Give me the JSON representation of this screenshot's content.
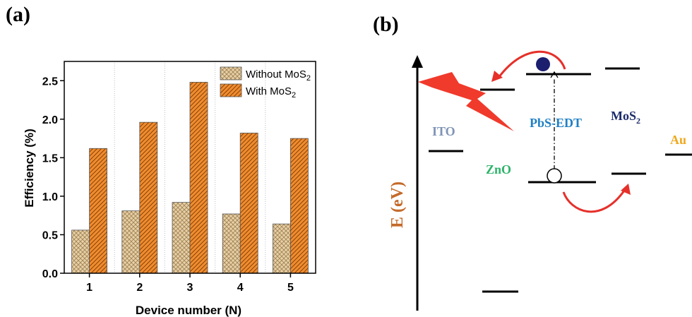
{
  "panel_a": {
    "label": "(a)"
  },
  "panel_b": {
    "label": "(b)"
  },
  "chart_data": {
    "type": "bar",
    "categories": [
      "1",
      "2",
      "3",
      "4",
      "5"
    ],
    "series": [
      {
        "name": "Without MoS",
        "sub": "2",
        "values": [
          0.56,
          0.81,
          0.92,
          0.77,
          0.64
        ],
        "color": "#e8cfa4",
        "hatch": "crosshatch"
      },
      {
        "name": "With MoS",
        "sub": "2",
        "values": [
          1.62,
          1.96,
          2.48,
          1.82,
          1.75
        ],
        "color": "#f08c2e",
        "hatch": "diagonal"
      }
    ],
    "xlabel": "Device number (N)",
    "ylabel": "Efficiency (%)",
    "ylim": [
      0,
      2.75
    ],
    "yticks": [
      "0.0",
      "0.5",
      "1.0",
      "1.5",
      "2.0",
      "2.5"
    ],
    "legend_position": "top-right",
    "grid": "vertical dotted separators"
  },
  "energy_diagram": {
    "axis_label": "E (eV)",
    "materials": [
      {
        "name": "ITO",
        "color": "#7f93b5"
      },
      {
        "name": "ZnO",
        "color": "#2fb36b"
      },
      {
        "name": "PbS-EDT",
        "color": "#1f7fc4"
      },
      {
        "name": "MoS",
        "sub": "2",
        "color": "#1b2a6b"
      },
      {
        "name": "Au",
        "color": "#f0a81d"
      }
    ],
    "axis_label_color": "#c46a2a"
  }
}
